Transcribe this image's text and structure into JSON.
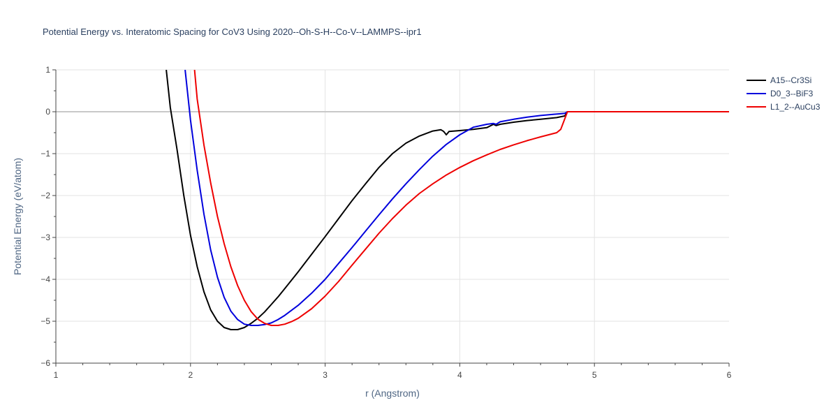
{
  "chart_data": {
    "type": "line",
    "title": "Potential Energy vs. Interatomic Spacing for CoV3 Using 2020--Oh-S-H--Co-V--LAMMPS--ipr1",
    "xlabel": "r (Angstrom)",
    "ylabel": "Potential Energy (eV/atom)",
    "xlim": [
      1,
      6
    ],
    "ylim": [
      -6,
      1
    ],
    "xticks": [
      "1",
      "2",
      "3",
      "4",
      "5",
      "6"
    ],
    "yticks": [
      "1",
      "0",
      "−1",
      "−2",
      "−3",
      "−4",
      "−5",
      "−6"
    ],
    "grid": true,
    "legend_position": "top-right",
    "series": [
      {
        "name": "A15--Cr3Si",
        "color": "#000000",
        "x": [
          1.82,
          1.85,
          1.9,
          1.95,
          2.0,
          2.05,
          2.1,
          2.15,
          2.2,
          2.25,
          2.3,
          2.35,
          2.4,
          2.45,
          2.5,
          2.55,
          2.6,
          2.65,
          2.7,
          2.8,
          2.9,
          3.0,
          3.1,
          3.2,
          3.3,
          3.4,
          3.5,
          3.6,
          3.7,
          3.8,
          3.86,
          3.88,
          3.9,
          3.92,
          4.0,
          4.1,
          4.2,
          4.25,
          4.27,
          4.3,
          4.4,
          4.5,
          4.6,
          4.72,
          4.78,
          4.8,
          5.0,
          5.5,
          6.0
        ],
        "y": [
          1.0,
          0.1,
          -0.9,
          -2.0,
          -2.95,
          -3.7,
          -4.3,
          -4.73,
          -5.0,
          -5.15,
          -5.2,
          -5.2,
          -5.15,
          -5.05,
          -4.93,
          -4.78,
          -4.6,
          -4.42,
          -4.22,
          -3.82,
          -3.4,
          -2.98,
          -2.55,
          -2.12,
          -1.72,
          -1.33,
          -1.0,
          -0.75,
          -0.58,
          -0.46,
          -0.43,
          -0.47,
          -0.55,
          -0.47,
          -0.45,
          -0.42,
          -0.38,
          -0.3,
          -0.33,
          -0.3,
          -0.25,
          -0.21,
          -0.18,
          -0.14,
          -0.1,
          0.0,
          0.0,
          0.0,
          0.0
        ]
      },
      {
        "name": "D0_3--BiF3",
        "color": "#0000dd",
        "x": [
          1.96,
          2.0,
          2.05,
          2.1,
          2.15,
          2.2,
          2.25,
          2.3,
          2.35,
          2.4,
          2.45,
          2.5,
          2.55,
          2.6,
          2.65,
          2.7,
          2.8,
          2.9,
          3.0,
          3.1,
          3.2,
          3.3,
          3.4,
          3.5,
          3.6,
          3.7,
          3.8,
          3.9,
          4.0,
          4.1,
          4.2,
          4.25,
          4.27,
          4.3,
          4.4,
          4.5,
          4.6,
          4.7,
          4.78,
          4.8,
          5.0,
          5.5,
          6.0
        ],
        "y": [
          1.0,
          -0.2,
          -1.4,
          -2.45,
          -3.3,
          -3.95,
          -4.43,
          -4.76,
          -4.96,
          -5.07,
          -5.1,
          -5.1,
          -5.08,
          -5.04,
          -4.96,
          -4.86,
          -4.62,
          -4.33,
          -4.0,
          -3.62,
          -3.24,
          -2.85,
          -2.46,
          -2.08,
          -1.72,
          -1.38,
          -1.06,
          -0.78,
          -0.55,
          -0.37,
          -0.3,
          -0.28,
          -0.3,
          -0.24,
          -0.18,
          -0.13,
          -0.09,
          -0.06,
          -0.04,
          0.0,
          0.0,
          0.0,
          0.0
        ]
      },
      {
        "name": "L1_2--AuCu3",
        "color": "#ee0000",
        "x": [
          2.03,
          2.05,
          2.1,
          2.15,
          2.2,
          2.25,
          2.3,
          2.35,
          2.4,
          2.45,
          2.5,
          2.55,
          2.6,
          2.65,
          2.7,
          2.75,
          2.8,
          2.9,
          3.0,
          3.1,
          3.2,
          3.3,
          3.4,
          3.5,
          3.6,
          3.7,
          3.8,
          3.9,
          4.0,
          4.1,
          4.2,
          4.3,
          4.4,
          4.5,
          4.6,
          4.72,
          4.75,
          4.77,
          4.8,
          5.0,
          5.5,
          6.0
        ],
        "y": [
          1.0,
          0.3,
          -0.8,
          -1.7,
          -2.5,
          -3.15,
          -3.7,
          -4.15,
          -4.5,
          -4.77,
          -4.95,
          -5.05,
          -5.1,
          -5.1,
          -5.07,
          -5.01,
          -4.93,
          -4.7,
          -4.4,
          -4.05,
          -3.66,
          -3.28,
          -2.9,
          -2.55,
          -2.23,
          -1.95,
          -1.72,
          -1.51,
          -1.33,
          -1.17,
          -1.03,
          -0.9,
          -0.79,
          -0.69,
          -0.6,
          -0.5,
          -0.42,
          -0.25,
          0.0,
          0.0,
          0.0,
          0.0
        ]
      }
    ]
  }
}
